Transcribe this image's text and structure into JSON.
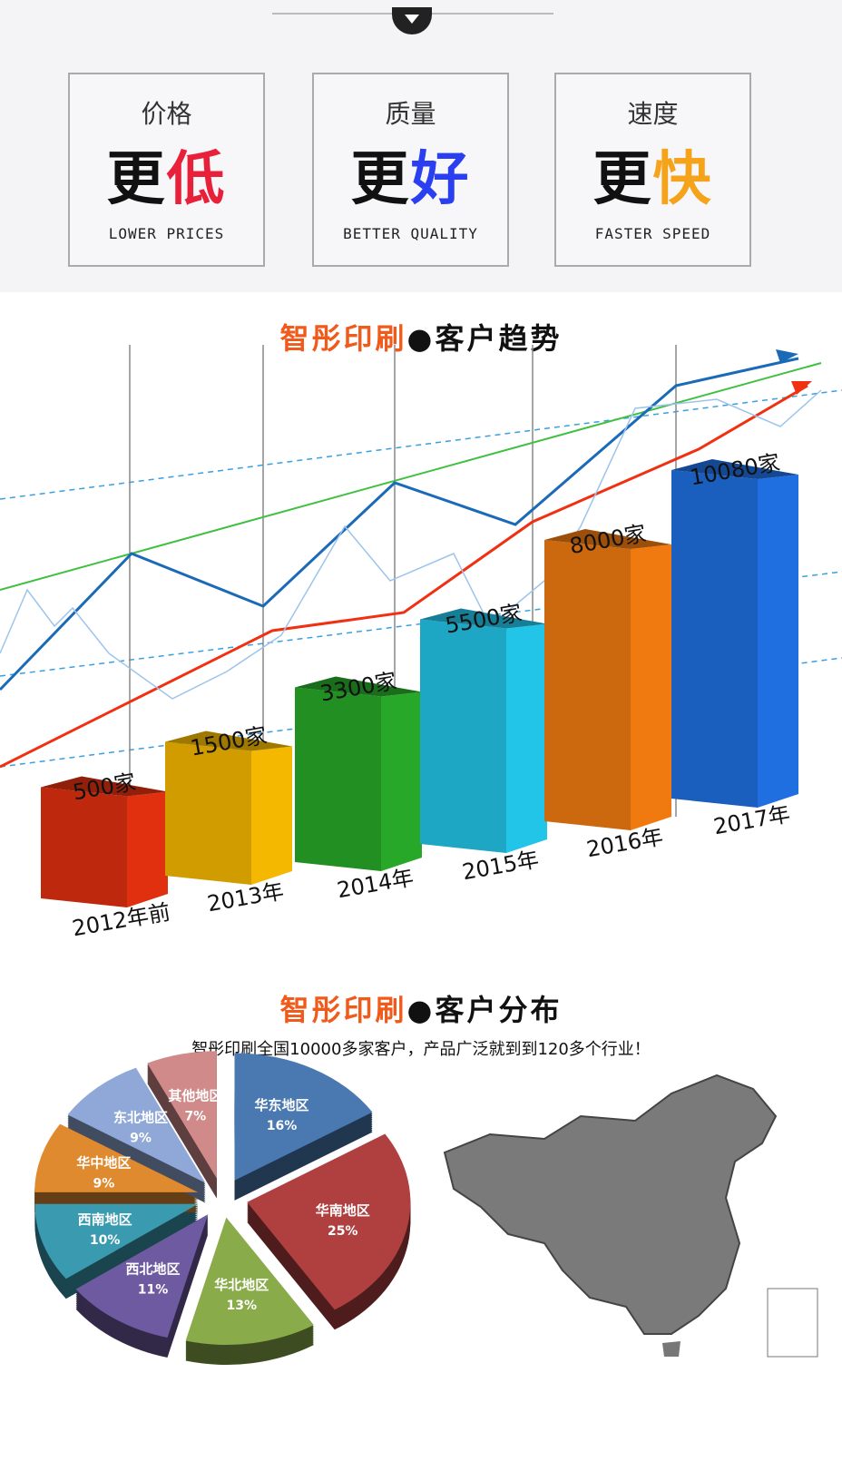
{
  "top": {
    "features": [
      {
        "label": "价格",
        "big_prefix": "更",
        "big_accent": "低",
        "english": "LOWER PRICES",
        "accent_color": "#e8203a"
      },
      {
        "label": "质量",
        "big_prefix": "更",
        "big_accent": "好",
        "english": "BETTER QUALITY",
        "accent_color": "#2a3ff0"
      },
      {
        "label": "速度",
        "big_prefix": "更",
        "big_accent": "快",
        "english": "FASTER SPEED",
        "accent_color": "#f5a31a"
      }
    ]
  },
  "trend": {
    "brand": "智彤印刷",
    "dot": "●",
    "title": "客户趋势"
  },
  "distribution": {
    "brand": "智彤印刷",
    "dot": "●",
    "title": "客户分布",
    "subtitle": "智彤印刷全国10000多家客户，产品广泛就到到120多个行业！"
  },
  "chart_data": [
    {
      "type": "bar",
      "categories": [
        "2012年前",
        "2013年",
        "2014年",
        "2015年",
        "2016年",
        "2017年"
      ],
      "values": [
        500,
        1500,
        3300,
        5500,
        8000,
        10080
      ],
      "labels": [
        "500家",
        "1500家",
        "3300家",
        "5500家",
        "8000家",
        "10080家"
      ],
      "colors": [
        "#e03010",
        "#f5b800",
        "#28a828",
        "#22c4e8",
        "#f07a10",
        "#1f6fe0"
      ]
    },
    {
      "type": "pie",
      "categories": [
        "华东地区",
        "华南地区",
        "华北地区",
        "西北地区",
        "西南地区",
        "华中地区",
        "东北地区",
        "其他地区"
      ],
      "values": [
        16,
        25,
        13,
        11,
        10,
        9,
        9,
        7
      ],
      "labels": [
        "16%",
        "25%",
        "13%",
        "11%",
        "10%",
        "9%",
        "9%",
        "7%"
      ],
      "colors": [
        "#4a78b0",
        "#b04040",
        "#8aab4a",
        "#6e5aa0",
        "#3a9ab0",
        "#e08a30",
        "#90a8d8",
        "#d08a8a"
      ]
    }
  ]
}
